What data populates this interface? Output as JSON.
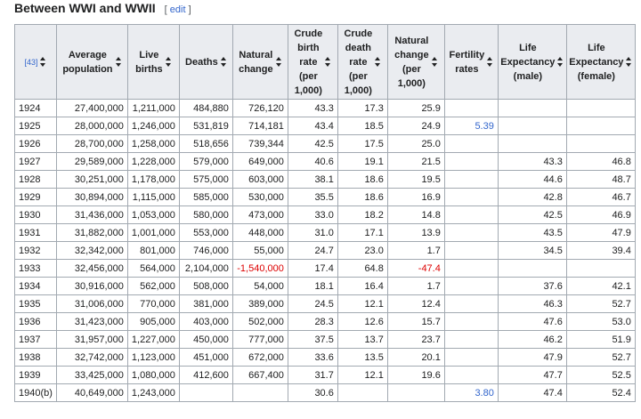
{
  "section": {
    "title": "Between WWI and WWII",
    "edit_label": "edit"
  },
  "table": {
    "columns": [
      {
        "label": "[43]",
        "ref": true
      },
      {
        "label": "Average population"
      },
      {
        "label": "Live births"
      },
      {
        "label": "Deaths"
      },
      {
        "label": "Natural change"
      },
      {
        "label": "Crude birth rate (per 1,000)"
      },
      {
        "label": "Crude death rate (per 1,000)"
      },
      {
        "label": "Natural change (per 1,000)"
      },
      {
        "label": "Fertility rates"
      },
      {
        "label": "Life Expectancy (male)"
      },
      {
        "label": "Life Expectancy (female)"
      }
    ],
    "rows": [
      [
        "1924",
        "27,400,000",
        "1,211,000",
        "484,880",
        "726,120",
        "43.3",
        "17.3",
        "25.9",
        "",
        "",
        ""
      ],
      [
        "1925",
        "28,000,000",
        "1,246,000",
        "531,819",
        "714,181",
        "43.4",
        "18.5",
        "24.9",
        "5.39",
        "",
        ""
      ],
      [
        "1926",
        "28,700,000",
        "1,258,000",
        "518,656",
        "739,344",
        "42.5",
        "17.5",
        "25.0",
        "",
        "",
        ""
      ],
      [
        "1927",
        "29,589,000",
        "1,228,000",
        "579,000",
        "649,000",
        "40.6",
        "19.1",
        "21.5",
        "",
        "43.3",
        "46.8"
      ],
      [
        "1928",
        "30,251,000",
        "1,178,000",
        "575,000",
        "603,000",
        "38.1",
        "18.6",
        "19.5",
        "",
        "44.6",
        "48.7"
      ],
      [
        "1929",
        "30,894,000",
        "1,115,000",
        "585,000",
        "530,000",
        "35.5",
        "18.6",
        "16.9",
        "",
        "42.8",
        "46.7"
      ],
      [
        "1930",
        "31,436,000",
        "1,053,000",
        "580,000",
        "473,000",
        "33.0",
        "18.2",
        "14.8",
        "",
        "42.5",
        "46.9"
      ],
      [
        "1931",
        "31,882,000",
        "1,001,000",
        "553,000",
        "448,000",
        "31.0",
        "17.1",
        "13.9",
        "",
        "43.5",
        "47.9"
      ],
      [
        "1932",
        "32,342,000",
        "801,000",
        "746,000",
        "55,000",
        "24.7",
        "23.0",
        "1.7",
        "",
        "34.5",
        "39.4"
      ],
      [
        "1933",
        "32,456,000",
        "564,000",
        "2,104,000",
        "-1,540,000",
        "17.4",
        "64.8",
        "-47.4",
        "",
        "",
        ""
      ],
      [
        "1934",
        "30,916,000",
        "562,000",
        "508,000",
        "54,000",
        "18.1",
        "16.4",
        "1.7",
        "",
        "37.6",
        "42.1"
      ],
      [
        "1935",
        "31,006,000",
        "770,000",
        "381,000",
        "389,000",
        "24.5",
        "12.1",
        "12.4",
        "",
        "46.3",
        "52.7"
      ],
      [
        "1936",
        "31,423,000",
        "905,000",
        "403,000",
        "502,000",
        "28.3",
        "12.6",
        "15.7",
        "",
        "47.6",
        "53.0"
      ],
      [
        "1937",
        "31,957,000",
        "1,227,000",
        "450,000",
        "777,000",
        "37.5",
        "13.7",
        "23.7",
        "",
        "46.2",
        "51.9"
      ],
      [
        "1938",
        "32,742,000",
        "1,123,000",
        "451,000",
        "672,000",
        "33.6",
        "13.5",
        "20.1",
        "",
        "47.9",
        "52.7"
      ],
      [
        "1939",
        "33,425,000",
        "1,080,000",
        "412,600",
        "667,400",
        "31.7",
        "12.1",
        "19.6",
        "",
        "47.7",
        "52.5"
      ],
      [
        "1940(b)",
        "40,649,000",
        "1,243,000",
        "",
        "",
        "30.6",
        "",
        "",
        "3.80",
        "47.4",
        "52.4"
      ]
    ],
    "colors": {
      "negative": "#dd0000",
      "link": "#3366cc",
      "header_bg": "#eaecf0",
      "border": "#a2a9b1"
    }
  }
}
